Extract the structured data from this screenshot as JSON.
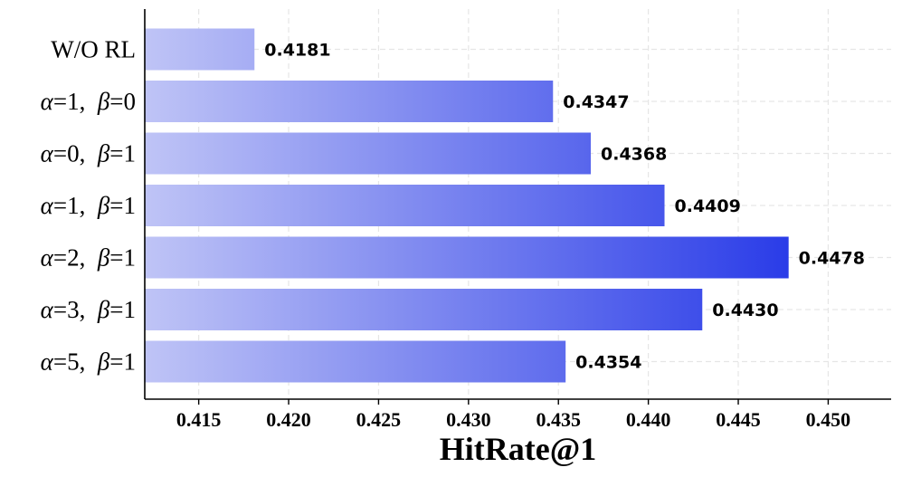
{
  "chart_data": {
    "type": "bar",
    "orientation": "horizontal",
    "categories": [
      {
        "label": "W/O RL"
      },
      {
        "a": "1",
        "b": "0"
      },
      {
        "a": "0",
        "b": "1"
      },
      {
        "a": "1",
        "b": "1"
      },
      {
        "a": "2",
        "b": "1"
      },
      {
        "a": "3",
        "b": "1"
      },
      {
        "a": "5",
        "b": "1"
      }
    ],
    "greek": {
      "alpha": "α",
      "beta": "β",
      "eq": "=",
      "sep": ","
    },
    "values": [
      0.4181,
      0.4347,
      0.4368,
      0.4409,
      0.4478,
      0.443,
      0.4354
    ],
    "value_labels": [
      "0.4181",
      "0.4347",
      "0.4368",
      "0.4409",
      "0.4478",
      "0.4430",
      "0.4354"
    ],
    "xlabel": "HitRate@1",
    "xlim": [
      0.412,
      0.4535
    ],
    "xticks": [
      0.415,
      0.42,
      0.425,
      0.43,
      0.435,
      0.44,
      0.445,
      0.45
    ],
    "xtick_labels": [
      "0.415",
      "0.420",
      "0.425",
      "0.430",
      "0.435",
      "0.440",
      "0.445",
      "0.450"
    ],
    "grid": "x and y, dashed",
    "colors": {
      "bar_light": "#bfc4f6",
      "bar_dark": "#2a3ce8",
      "grid": "#e6e6e6",
      "axis": "#000000"
    }
  }
}
